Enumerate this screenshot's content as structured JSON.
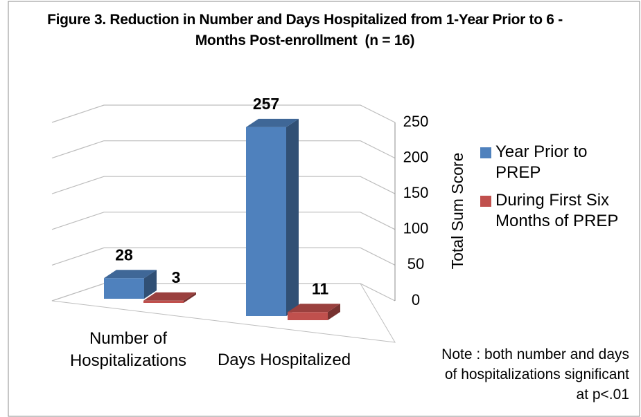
{
  "chart_data": {
    "type": "bar3d",
    "title": "Figure 3. Reduction in Number and Days Hospitalized from 1-Year Prior to 6 -Months Post-enrollment  (n = 16)",
    "categories": [
      "Number of Hospitalizations",
      "Days Hospitalized"
    ],
    "series": [
      {
        "name": "Year Prior to PREP",
        "color": "#4f81bd",
        "values": [
          28,
          257
        ]
      },
      {
        "name": "During First Six Months of PREP",
        "color": "#c0504d",
        "values": [
          3,
          11
        ]
      }
    ],
    "ylabel": "Total Sum Score",
    "ylim": [
      0,
      250
    ],
    "yticks": [
      0,
      50,
      100,
      150,
      200,
      250
    ],
    "grid": true,
    "legend": "right",
    "annotation": "Note : both number and days of hospitalizations significant at p<.01"
  }
}
